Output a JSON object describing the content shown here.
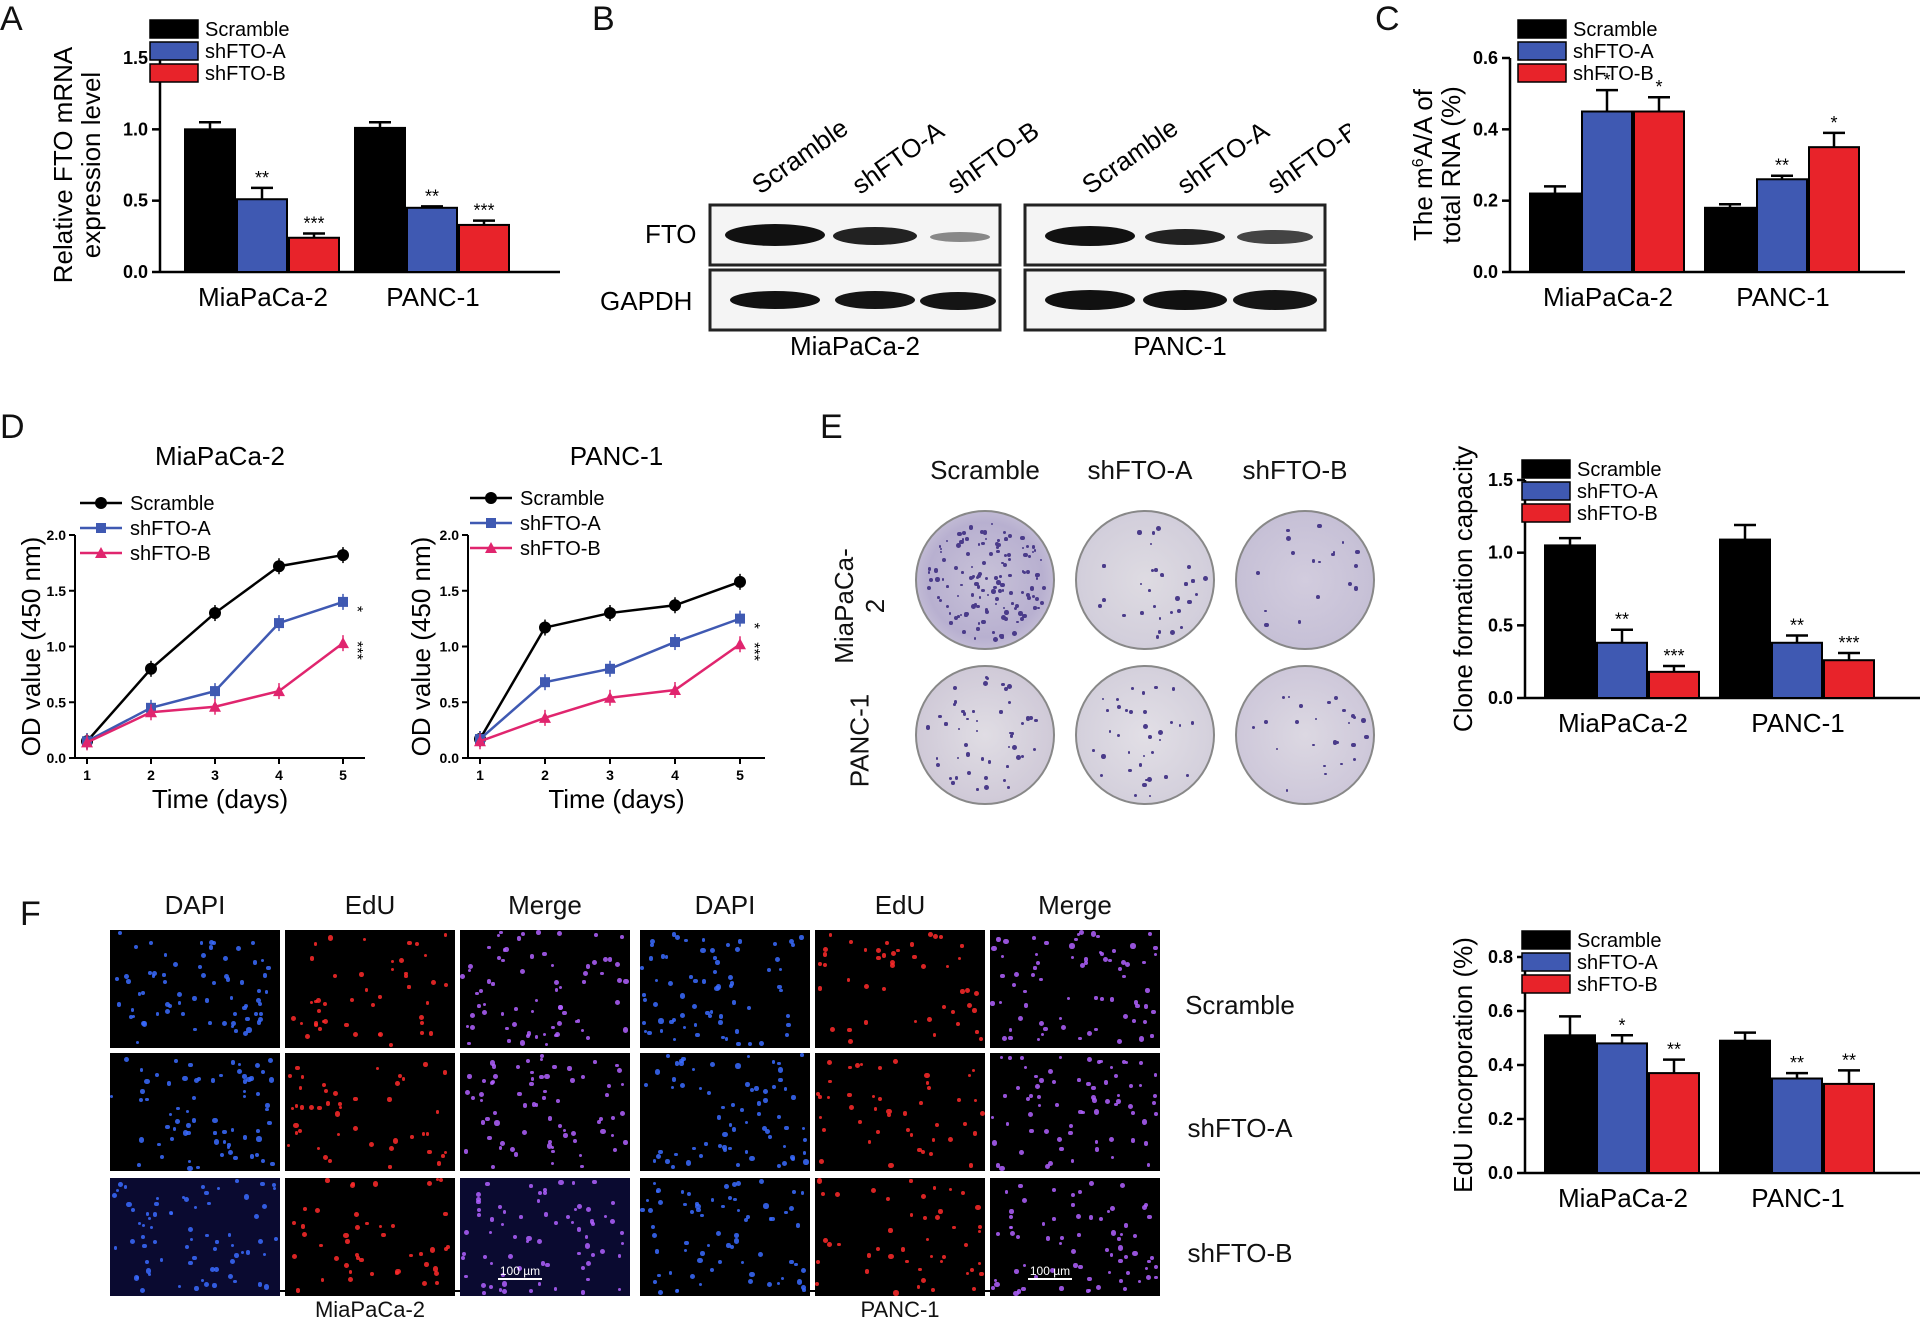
{
  "panel_letters": {
    "a": "A",
    "b": "B",
    "c": "C",
    "d": "D",
    "e": "E",
    "f": "F"
  },
  "colors": {
    "scramble": "#000000",
    "shA": "#3f59b2",
    "shB": "#e8232a",
    "lineB": "#e0256e"
  },
  "chart_data": [
    {
      "id": "A",
      "type": "bar",
      "ylabel": [
        "Relative FTO mRNA",
        "expression level"
      ],
      "categories": [
        "MiaPaCa-2",
        "PANC-1"
      ],
      "ylim": [
        0,
        1.5
      ],
      "yticks": [
        "0.0",
        "0.5",
        "1.0",
        "1.5"
      ],
      "legend": [
        "Scramble",
        "shFTO-A",
        "shFTO-B"
      ],
      "series": [
        {
          "name": "Scramble",
          "values": [
            1.0,
            1.01
          ],
          "err": [
            0.05,
            0.04
          ],
          "sig": [
            "",
            ""
          ]
        },
        {
          "name": "shFTO-A",
          "values": [
            0.51,
            0.45
          ],
          "err": [
            0.08,
            0.01
          ],
          "sig": [
            "**",
            "**"
          ]
        },
        {
          "name": "shFTO-B",
          "values": [
            0.24,
            0.33
          ],
          "err": [
            0.03,
            0.03
          ],
          "sig": [
            "***",
            "***"
          ]
        }
      ]
    },
    {
      "id": "C",
      "type": "bar",
      "ylabel": [
        "The m6A/A of",
        "total RNA (%)"
      ],
      "categories": [
        "MiaPaCa-2",
        "PANC-1"
      ],
      "ylim": [
        0,
        0.6
      ],
      "yticks": [
        "0.0",
        "0.2",
        "0.4",
        "0.6"
      ],
      "legend": [
        "Scramble",
        "shFTO-A",
        "shFTO-B"
      ],
      "series": [
        {
          "name": "Scramble",
          "values": [
            0.22,
            0.18
          ],
          "err": [
            0.02,
            0.01
          ],
          "sig": [
            "",
            ""
          ]
        },
        {
          "name": "shFTO-A",
          "values": [
            0.45,
            0.26
          ],
          "err": [
            0.06,
            0.01
          ],
          "sig": [
            "*",
            "**"
          ]
        },
        {
          "name": "shFTO-B",
          "values": [
            0.45,
            0.35
          ],
          "err": [
            0.04,
            0.04
          ],
          "sig": [
            "*",
            "*"
          ]
        }
      ]
    },
    {
      "id": "D1",
      "type": "line",
      "title": "MiaPaCa-2",
      "xlabel": "Time (days)",
      "ylabel": "OD value (450 nm)",
      "x": [
        1,
        2,
        3,
        4,
        5
      ],
      "ylim": [
        0,
        2.0
      ],
      "yticks": [
        "0.0",
        "0.5",
        "1.0",
        "1.5",
        "2.0"
      ],
      "series": [
        {
          "name": "Scramble",
          "values": [
            0.15,
            0.8,
            1.3,
            1.72,
            1.82
          ],
          "sig": ""
        },
        {
          "name": "shFTO-A",
          "values": [
            0.15,
            0.45,
            0.6,
            1.21,
            1.4
          ],
          "sig": "*"
        },
        {
          "name": "shFTO-B",
          "values": [
            0.14,
            0.41,
            0.46,
            0.6,
            1.03
          ],
          "sig": "***"
        }
      ]
    },
    {
      "id": "D2",
      "type": "line",
      "title": "PANC-1",
      "xlabel": "Time (days)",
      "ylabel": "OD value (450 nm)",
      "x": [
        1,
        2,
        3,
        4,
        5
      ],
      "ylim": [
        0,
        2.0
      ],
      "yticks": [
        "0.0",
        "0.5",
        "1.0",
        "1.5",
        "2.0"
      ],
      "series": [
        {
          "name": "Scramble",
          "values": [
            0.17,
            1.17,
            1.3,
            1.37,
            1.58
          ],
          "sig": ""
        },
        {
          "name": "shFTO-A",
          "values": [
            0.17,
            0.68,
            0.8,
            1.04,
            1.25
          ],
          "sig": "*"
        },
        {
          "name": "shFTO-B",
          "values": [
            0.15,
            0.36,
            0.54,
            0.61,
            1.02
          ],
          "sig": "***"
        }
      ]
    },
    {
      "id": "E",
      "type": "bar",
      "ylabel": [
        "Clone formation capacity"
      ],
      "categories": [
        "MiaPaCa-2",
        "PANC-1"
      ],
      "ylim": [
        0,
        1.5
      ],
      "yticks": [
        "0.0",
        "0.5",
        "1.0",
        "1.5"
      ],
      "legend": [
        "Scramble",
        "shFTO-A",
        "shFTO-B"
      ],
      "series": [
        {
          "name": "Scramble",
          "values": [
            1.05,
            1.09
          ],
          "err": [
            0.05,
            0.1
          ],
          "sig": [
            "",
            ""
          ]
        },
        {
          "name": "shFTO-A",
          "values": [
            0.38,
            0.38
          ],
          "err": [
            0.09,
            0.05
          ],
          "sig": [
            "**",
            "**"
          ]
        },
        {
          "name": "shFTO-B",
          "values": [
            0.18,
            0.26
          ],
          "err": [
            0.04,
            0.05
          ],
          "sig": [
            "***",
            "***"
          ]
        }
      ]
    },
    {
      "id": "F",
      "type": "bar",
      "ylabel": [
        "EdU incorporation (%)"
      ],
      "categories": [
        "MiaPaCa-2",
        "PANC-1"
      ],
      "ylim": [
        0,
        0.8
      ],
      "yticks": [
        "0.0",
        "0.2",
        "0.4",
        "0.6",
        "0.8"
      ],
      "legend": [
        "Scramble",
        "shFTO-A",
        "shFTO-B"
      ],
      "series": [
        {
          "name": "Scramble",
          "values": [
            0.51,
            0.49
          ],
          "err": [
            0.07,
            0.03
          ],
          "sig": [
            "",
            ""
          ]
        },
        {
          "name": "shFTO-A",
          "values": [
            0.48,
            0.35
          ],
          "err": [
            0.03,
            0.02
          ],
          "sig": [
            "*",
            "**"
          ]
        },
        {
          "name": "shFTO-B",
          "values": [
            0.37,
            0.33
          ],
          "err": [
            0.05,
            0.05
          ],
          "sig": [
            "**",
            "**"
          ]
        }
      ]
    }
  ],
  "blot": {
    "lanes": [
      "Scramble",
      "shFTO-A",
      "shFTO-B",
      "Scramble",
      "shFTO-A",
      "shFTO-B"
    ],
    "rows": [
      "FTO",
      "GAPDH"
    ],
    "groups": [
      "MiaPaCa-2",
      "PANC-1"
    ]
  },
  "colony": {
    "columns": [
      "Scramble",
      "shFTO-A",
      "shFTO-B"
    ],
    "rows": [
      "MiaPaCa-2",
      "PANC-1"
    ]
  },
  "edu": {
    "columns": [
      "DAPI",
      "EdU",
      "Merge",
      "DAPI",
      "EdU",
      "Merge"
    ],
    "rows": [
      "Scramble",
      "shFTO-A",
      "shFTO-B"
    ],
    "groups": [
      "MiaPaCa-2",
      "PANC-1"
    ],
    "scale_bar": "100 µm"
  }
}
